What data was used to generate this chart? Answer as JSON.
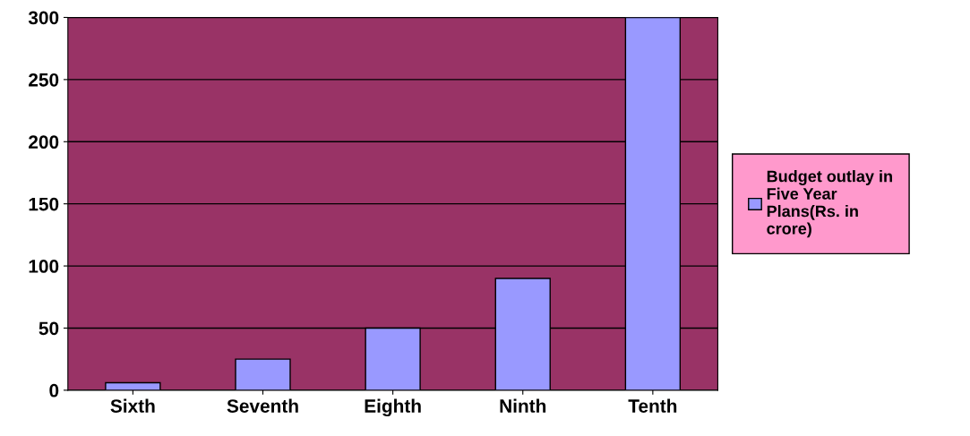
{
  "chart_data": {
    "type": "bar",
    "categories": [
      "Sixth",
      "Seventh",
      "Eighth",
      "Ninth",
      "Tenth"
    ],
    "series": [
      {
        "name": "Budget outlay in Five Year Plans(Rs. in crore)",
        "color": "#9999ff",
        "values": [
          6,
          25,
          50,
          90,
          300
        ]
      }
    ],
    "ylim": [
      0,
      300
    ],
    "yticks": [
      0,
      50,
      100,
      150,
      200,
      250,
      300
    ],
    "grid": "y",
    "legend": "right"
  }
}
